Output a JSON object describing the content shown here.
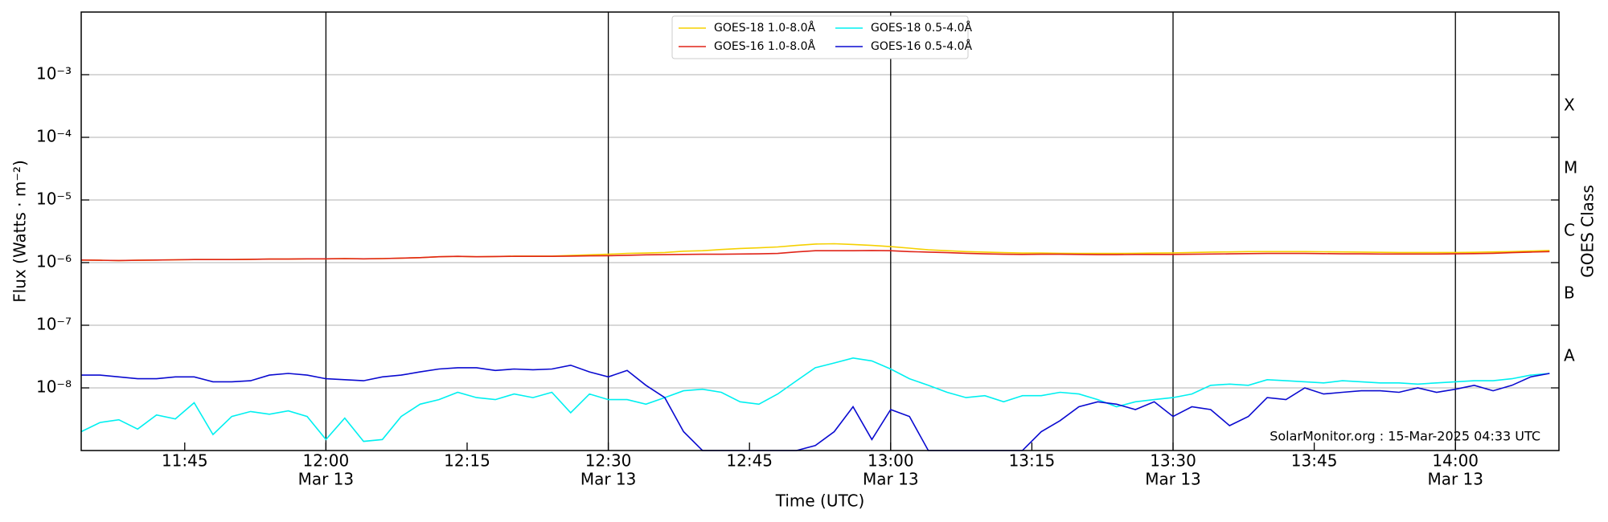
{
  "chart_data": {
    "type": "line",
    "x_label": "Time (UTC)",
    "y_label": "Flux (Watts · m⁻²)",
    "y2_label": "GOES Class",
    "annotation": "SolarMonitor.org : 15-Mar-2025 04:33 UTC",
    "log_scale": true,
    "grid": true,
    "legend": "upper center",
    "xlim": [
      "11:34",
      "14:11"
    ],
    "ylim": [
      1e-09,
      0.01
    ],
    "y2lim": [
      1e-09,
      0.01
    ],
    "xticks": [
      {
        "value": "11:45",
        "label": [
          "11:45"
        ]
      },
      {
        "value": "12:00",
        "label": [
          "12:00",
          "Mar 13"
        ]
      },
      {
        "value": "12:15",
        "label": [
          "12:15"
        ]
      },
      {
        "value": "12:30",
        "label": [
          "12:30",
          "Mar 13"
        ]
      },
      {
        "value": "12:45",
        "label": [
          "12:45"
        ]
      },
      {
        "value": "13:00",
        "label": [
          "13:00",
          "Mar 13"
        ]
      },
      {
        "value": "13:15",
        "label": [
          "13:15"
        ]
      },
      {
        "value": "13:30",
        "label": [
          "13:30",
          "Mar 13"
        ]
      },
      {
        "value": "13:45",
        "label": [
          "13:45"
        ]
      },
      {
        "value": "14:00",
        "label": [
          "14:00",
          "Mar 13"
        ]
      }
    ],
    "yticks": [
      {
        "value": 1e-08,
        "label": "10⁻⁸"
      },
      {
        "value": 1e-07,
        "label": "10⁻⁷"
      },
      {
        "value": 1e-06,
        "label": "10⁻⁶"
      },
      {
        "value": 1e-05,
        "label": "10⁻⁵"
      },
      {
        "value": 0.0001,
        "label": "10⁻⁴"
      },
      {
        "value": 0.001,
        "label": "10⁻³"
      }
    ],
    "y2ticks": [
      {
        "value": 3.16e-08,
        "label": "A"
      },
      {
        "value": 3.16e-07,
        "label": "B"
      },
      {
        "value": 3.16e-06,
        "label": "C"
      },
      {
        "value": 3.16e-05,
        "label": "M"
      },
      {
        "value": 0.000316,
        "label": "X"
      }
    ],
    "x": [
      "11:34",
      "11:36",
      "11:38",
      "11:40",
      "11:42",
      "11:44",
      "11:46",
      "11:48",
      "11:50",
      "11:52",
      "11:54",
      "11:56",
      "11:58",
      "12:00",
      "12:02",
      "12:04",
      "12:06",
      "12:08",
      "12:10",
      "12:12",
      "12:14",
      "12:16",
      "12:18",
      "12:20",
      "12:22",
      "12:24",
      "12:26",
      "12:28",
      "12:30",
      "12:32",
      "12:34",
      "12:36",
      "12:38",
      "12:40",
      "12:42",
      "12:44",
      "12:46",
      "12:48",
      "12:50",
      "12:52",
      "12:54",
      "12:56",
      "12:58",
      "13:00",
      "13:02",
      "13:04",
      "13:06",
      "13:08",
      "13:10",
      "13:12",
      "13:14",
      "13:16",
      "13:18",
      "13:20",
      "13:22",
      "13:24",
      "13:26",
      "13:28",
      "13:30",
      "13:32",
      "13:34",
      "13:36",
      "13:38",
      "13:40",
      "13:42",
      "13:44",
      "13:46",
      "13:48",
      "13:50",
      "13:52",
      "13:54",
      "13:56",
      "13:58",
      "14:00",
      "14:02",
      "14:04",
      "14:06",
      "14:08",
      "14:10"
    ],
    "series": [
      {
        "name": "GOES-18 1.0-8.0Å",
        "color": "#f5d000",
        "values": [
          1.1e-06,
          1.09e-06,
          1.08e-06,
          1.09e-06,
          1.1e-06,
          1.11e-06,
          1.12e-06,
          1.12e-06,
          1.12e-06,
          1.13e-06,
          1.14e-06,
          1.14e-06,
          1.15e-06,
          1.15e-06,
          1.16e-06,
          1.15e-06,
          1.16e-06,
          1.18e-06,
          1.2e-06,
          1.24e-06,
          1.26e-06,
          1.24e-06,
          1.25e-06,
          1.27e-06,
          1.27e-06,
          1.27e-06,
          1.3e-06,
          1.33e-06,
          1.36e-06,
          1.4e-06,
          1.42e-06,
          1.45e-06,
          1.52e-06,
          1.55e-06,
          1.62e-06,
          1.68e-06,
          1.72e-06,
          1.78e-06,
          1.88e-06,
          1.98e-06,
          2e-06,
          1.95e-06,
          1.88e-06,
          1.8e-06,
          1.7e-06,
          1.6e-06,
          1.55e-06,
          1.5e-06,
          1.47e-06,
          1.44e-06,
          1.42e-06,
          1.42e-06,
          1.41e-06,
          1.4e-06,
          1.4e-06,
          1.4e-06,
          1.41e-06,
          1.42e-06,
          1.43e-06,
          1.45e-06,
          1.47e-06,
          1.48e-06,
          1.5e-06,
          1.5e-06,
          1.5e-06,
          1.5e-06,
          1.49e-06,
          1.48e-06,
          1.47e-06,
          1.46e-06,
          1.45e-06,
          1.45e-06,
          1.45e-06,
          1.45e-06,
          1.46e-06,
          1.48e-06,
          1.5e-06,
          1.53e-06,
          1.56e-06
        ]
      },
      {
        "name": "GOES-16 1.0-8.0Å",
        "color": "#e02418",
        "values": [
          1.1e-06,
          1.09e-06,
          1.08e-06,
          1.09e-06,
          1.1e-06,
          1.11e-06,
          1.12e-06,
          1.12e-06,
          1.12e-06,
          1.13e-06,
          1.14e-06,
          1.14e-06,
          1.15e-06,
          1.15e-06,
          1.16e-06,
          1.15e-06,
          1.16e-06,
          1.18e-06,
          1.2e-06,
          1.24e-06,
          1.26e-06,
          1.24e-06,
          1.25e-06,
          1.26e-06,
          1.26e-06,
          1.26e-06,
          1.27e-06,
          1.28e-06,
          1.29e-06,
          1.31e-06,
          1.33e-06,
          1.34e-06,
          1.35e-06,
          1.36e-06,
          1.36e-06,
          1.37e-06,
          1.38e-06,
          1.4e-06,
          1.48e-06,
          1.55e-06,
          1.55e-06,
          1.55e-06,
          1.56e-06,
          1.55e-06,
          1.5e-06,
          1.47e-06,
          1.44e-06,
          1.41e-06,
          1.38e-06,
          1.36e-06,
          1.35e-06,
          1.36e-06,
          1.36e-06,
          1.35e-06,
          1.34e-06,
          1.34e-06,
          1.35e-06,
          1.35e-06,
          1.35e-06,
          1.36e-06,
          1.37e-06,
          1.38e-06,
          1.39e-06,
          1.4e-06,
          1.4e-06,
          1.4e-06,
          1.39e-06,
          1.38e-06,
          1.38e-06,
          1.37e-06,
          1.37e-06,
          1.37e-06,
          1.37e-06,
          1.38e-06,
          1.39e-06,
          1.41e-06,
          1.44e-06,
          1.47e-06,
          1.5e-06
        ]
      },
      {
        "name": "GOES-18 0.5-4.0Å",
        "color": "#00f0f0",
        "values": [
          2e-09,
          2.8e-09,
          3.1e-09,
          2.2e-09,
          3.7e-09,
          3.2e-09,
          5.8e-09,
          1.8e-09,
          3.5e-09,
          4.2e-09,
          3.8e-09,
          4.3e-09,
          3.5e-09,
          1.5e-09,
          3.3e-09,
          1.4e-09,
          1.5e-09,
          3.5e-09,
          5.5e-09,
          6.5e-09,
          8.5e-09,
          7e-09,
          6.5e-09,
          8e-09,
          7e-09,
          8.5e-09,
          4e-09,
          8e-09,
          6.5e-09,
          6.5e-09,
          5.5e-09,
          7e-09,
          9e-09,
          9.5e-09,
          8.5e-09,
          6e-09,
          5.5e-09,
          8e-09,
          1.3e-08,
          2.1e-08,
          2.5e-08,
          3e-08,
          2.7e-08,
          2e-08,
          1.4e-08,
          1.1e-08,
          8.5e-09,
          7e-09,
          7.5e-09,
          6e-09,
          7.5e-09,
          7.5e-09,
          8.5e-09,
          8e-09,
          6.5e-09,
          5e-09,
          6e-09,
          6.5e-09,
          7e-09,
          8e-09,
          1.1e-08,
          1.15e-08,
          1.1e-08,
          1.35e-08,
          1.3e-08,
          1.25e-08,
          1.2e-08,
          1.3e-08,
          1.25e-08,
          1.2e-08,
          1.2e-08,
          1.15e-08,
          1.2e-08,
          1.25e-08,
          1.3e-08,
          1.3e-08,
          1.4e-08,
          1.6e-08,
          1.7e-08
        ]
      },
      {
        "name": "GOES-16 0.5-4.0Å",
        "color": "#0a0ad0",
        "values": [
          1.6e-08,
          1.6e-08,
          1.5e-08,
          1.4e-08,
          1.4e-08,
          1.5e-08,
          1.5e-08,
          1.25e-08,
          1.25e-08,
          1.3e-08,
          1.6e-08,
          1.7e-08,
          1.6e-08,
          1.4e-08,
          1.35e-08,
          1.3e-08,
          1.5e-08,
          1.6e-08,
          1.8e-08,
          2e-08,
          2.1e-08,
          2.1e-08,
          1.9e-08,
          2e-08,
          1.95e-08,
          2e-08,
          2.3e-08,
          1.8e-08,
          1.5e-08,
          1.9e-08,
          1.1e-08,
          7e-09,
          2e-09,
          1e-09,
          1e-09,
          1e-09,
          1e-09,
          1e-09,
          1e-09,
          1.2e-09,
          2e-09,
          5e-09,
          1.5e-09,
          4.5e-09,
          3.5e-09,
          1e-09,
          1e-09,
          1e-09,
          1e-09,
          1e-09,
          1e-09,
          2e-09,
          3e-09,
          5e-09,
          6e-09,
          5.5e-09,
          4.5e-09,
          6e-09,
          3.5e-09,
          5e-09,
          4.5e-09,
          2.5e-09,
          3.5e-09,
          7e-09,
          6.5e-09,
          1e-08,
          8e-09,
          8.5e-09,
          9e-09,
          9e-09,
          8.5e-09,
          1e-08,
          8.5e-09,
          9.5e-09,
          1.1e-08,
          9e-09,
          1.1e-08,
          1.5e-08,
          1.7e-08
        ]
      }
    ]
  }
}
